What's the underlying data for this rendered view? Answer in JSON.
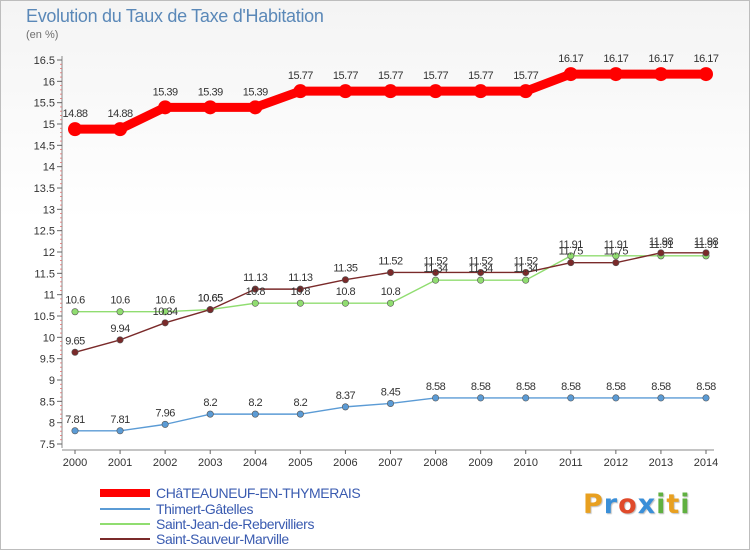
{
  "header": {
    "title": "Evolution du Taux de Taxe d'Habitation",
    "unit": "(en %)"
  },
  "logo": {
    "text": "Proxiti",
    "colors": [
      "#e8a020",
      "#3a8fd8",
      "#e04a2a",
      "#3a8fd8",
      "#60b040",
      "#e8a020",
      "#60b040"
    ]
  },
  "chart_data": {
    "type": "line",
    "x": [
      "2000",
      "2001",
      "2002",
      "2003",
      "2004",
      "2005",
      "2006",
      "2007",
      "2008",
      "2009",
      "2010",
      "2011",
      "2012",
      "2013",
      "2014"
    ],
    "ylim": [
      7.5,
      16.5
    ],
    "yticks": [
      "7.5",
      "8",
      "8.5",
      "9",
      "9.5",
      "10",
      "10.5",
      "11",
      "11.5",
      "12",
      "12.5",
      "13",
      "13.5",
      "14",
      "14.5",
      "15",
      "15.5",
      "16",
      "16.5"
    ],
    "grid": false,
    "legend_position": "bottom-left",
    "series": [
      {
        "name": "CHâTEAUNEUF-EN-THYMERAIS",
        "color": "#ff0000",
        "values": [
          14.88,
          14.88,
          15.39,
          15.39,
          15.39,
          15.77,
          15.77,
          15.77,
          15.77,
          15.77,
          15.77,
          16.17,
          16.17,
          16.17,
          16.17
        ],
        "labels": [
          "14.88",
          "14.88",
          "15.39",
          "15.39",
          "15.39",
          "15.77",
          "15.77",
          "15.77",
          "15.77",
          "15.77",
          "15.77",
          "16.17",
          "16.17",
          "16.17",
          "16.17"
        ]
      },
      {
        "name": "Thimert-Gâtelles",
        "color": "#5b9bd5",
        "values": [
          7.81,
          7.81,
          7.96,
          8.2,
          8.2,
          8.2,
          8.37,
          8.45,
          8.58,
          8.58,
          8.58,
          8.58,
          8.58,
          8.58,
          8.58
        ],
        "labels": [
          "7.81",
          "7.81",
          "7.96",
          "8.2",
          "8.2",
          "8.2",
          "8.37",
          "8.45",
          "8.58",
          "8.58",
          "8.58",
          "8.58",
          "8.58",
          "8.58",
          "8.58"
        ]
      },
      {
        "name": "Saint-Jean-de-Rebervilliers",
        "color": "#90dd70",
        "values": [
          10.6,
          10.6,
          10.6,
          10.65,
          10.8,
          10.8,
          10.8,
          10.8,
          11.34,
          11.34,
          11.34,
          11.91,
          11.91,
          11.91,
          11.91
        ],
        "labels": [
          "10.6",
          "10.6",
          "10.6",
          "10.65",
          "10.8",
          "10.8",
          "10.8",
          "10.8",
          "11.34",
          "11.34",
          "11.34",
          "11.91",
          "11.91",
          "11.91",
          "11.91"
        ]
      },
      {
        "name": "Saint-Sauveur-Marville",
        "color": "#7a2a2a",
        "values": [
          9.65,
          9.94,
          10.34,
          10.65,
          11.13,
          11.13,
          11.35,
          11.52,
          11.52,
          11.52,
          11.52,
          11.75,
          11.75,
          11.98,
          11.98
        ],
        "labels": [
          "9.65",
          "9.94",
          "10.34",
          "10.65",
          "11.13",
          "11.13",
          "11.35",
          "11.52",
          "11.52",
          "11.52",
          "11.52",
          "11.75",
          "11.75",
          "11.98",
          "11.98"
        ]
      }
    ]
  }
}
